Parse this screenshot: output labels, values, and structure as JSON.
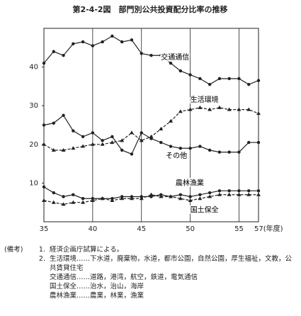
{
  "chart_data": {
    "type": "line",
    "title": "第2-4-2図　部門別公共投資配分比率の推移",
    "x": [
      35,
      36,
      37,
      38,
      39,
      40,
      41,
      42,
      43,
      44,
      45,
      46,
      47,
      48,
      49,
      50,
      51,
      52,
      53,
      54,
      55,
      56,
      57
    ],
    "xlim": [
      35,
      57
    ],
    "xticks": [
      35,
      40,
      45,
      50,
      55,
      {
        "value": 57,
        "label": "57(年度)"
      }
    ],
    "ylim": [
      0,
      50
    ],
    "yticks": [
      10,
      20,
      30,
      40
    ],
    "grid": "x",
    "series": [
      {
        "name": "交通通信",
        "color": "#222",
        "marker": "circle",
        "line_style": "solid",
        "values": [
          41,
          44,
          43,
          46,
          46.5,
          45.5,
          46.5,
          48,
          46.5,
          47,
          43.5,
          43,
          43,
          41,
          39,
          38,
          37,
          35.5,
          37,
          37,
          37,
          35.5,
          36.5
        ]
      },
      {
        "name": "生活環境",
        "color": "#222",
        "marker": "triangle",
        "line_style": "dashed",
        "values": [
          20,
          18.5,
          18.5,
          19,
          19.5,
          20,
          20,
          20.5,
          21,
          23,
          21,
          22,
          24,
          26,
          28.5,
          29,
          29.5,
          29,
          29.5,
          29,
          29,
          29,
          28
        ]
      },
      {
        "name": "その他",
        "color": "#222",
        "marker": "circle",
        "line_style": "solid",
        "values": [
          25,
          25.5,
          27.5,
          23.5,
          22,
          23,
          21,
          22,
          18.5,
          17.5,
          23,
          21.5,
          20.5,
          19.5,
          19,
          19,
          19.5,
          18.5,
          18,
          18,
          18,
          20.5,
          20.5
        ]
      },
      {
        "name": "農林漁業",
        "color": "#222",
        "marker": "circle",
        "line_style": "solid",
        "values": [
          9,
          7.5,
          6.5,
          7,
          6,
          6,
          6,
          6,
          6.5,
          6.5,
          6.5,
          6.5,
          7,
          6.5,
          7,
          6.5,
          7,
          7.5,
          8,
          8,
          8,
          8,
          8
        ]
      },
      {
        "name": "国土保全",
        "color": "#222",
        "marker": "triangle",
        "line_style": "dashed",
        "values": [
          5.5,
          5,
          4.5,
          5,
          5,
          5.5,
          6,
          5.5,
          6,
          6,
          6,
          7,
          6.5,
          6.5,
          6,
          5.5,
          6,
          6.5,
          7,
          7,
          7,
          7,
          7
        ]
      }
    ]
  },
  "notes": {
    "label": "(備考)",
    "items": [
      {
        "num": "1.",
        "text": "経済企画庁試算による。"
      },
      {
        "num": "2.",
        "text": "生活環境……下水道，廃棄物，水道，都市公園，自然公園，厚生福祉，文教，公共賃貸住宅"
      }
    ],
    "details": [
      "交通通信……道路，港湾，航空，鉄道，電気通信",
      "国土保全……治水，治山，海岸",
      "農林漁業……農業，林業，漁業"
    ]
  }
}
